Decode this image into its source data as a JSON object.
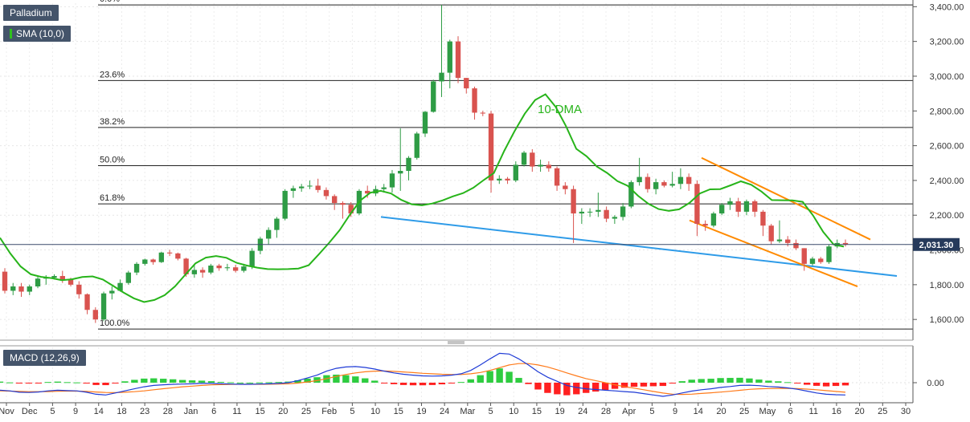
{
  "chart_data": [
    {
      "type": "candlestick",
      "title": "Palladium",
      "ylim": [
        1490,
        3420
      ],
      "y_ticks": [
        1600,
        1800,
        2000,
        2200,
        2400,
        2600,
        2800,
        3000,
        3200,
        3400
      ],
      "y_tick_labels": [
        "1,600.00",
        "1,800.00",
        "2,000.00",
        "2,200.00",
        "2,400.00",
        "2,600.00",
        "2,800.00",
        "3,000.00",
        "3,200.00",
        "3,400.00"
      ],
      "last_price": 2031.3,
      "last_price_label": "2,031.30",
      "fibonacci": [
        {
          "label": "0.0%",
          "value": 3410
        },
        {
          "label": "23.6%",
          "value": 2975
        },
        {
          "label": "38.2%",
          "value": 2705
        },
        {
          "label": "50.0%",
          "value": 2485
        },
        {
          "label": "61.8%",
          "value": 2265
        },
        {
          "label": "100.0%",
          "value": 1545
        }
      ],
      "indicator_legend": "SMA (10,0)",
      "annotation": "10-DMA",
      "x_tick_labels": [
        "Nov",
        "Dec",
        "5",
        "9",
        "14",
        "18",
        "23",
        "28",
        "Jan",
        "6",
        "11",
        "15",
        "20",
        "25",
        "Feb",
        "5",
        "10",
        "15",
        "19",
        "24",
        "Mar",
        "5",
        "10",
        "15",
        "19",
        "24",
        "28",
        "Apr",
        "5",
        "9",
        "14",
        "20",
        "25",
        "May",
        "6",
        "11",
        "16",
        "20",
        "25",
        "30"
      ],
      "sma_10": [
        2070,
        1980,
        1905,
        1860,
        1845,
        1838,
        1826,
        1831,
        1844,
        1848,
        1830,
        1793,
        1755,
        1722,
        1700,
        1712,
        1740,
        1790,
        1857,
        1923,
        1956,
        1965,
        1955,
        1926,
        1910,
        1898,
        1890,
        1889,
        1890,
        1893,
        1912,
        1976,
        2042,
        2114,
        2203,
        2284,
        2330,
        2340,
        2325,
        2288,
        2263,
        2257,
        2267,
        2285,
        2308,
        2327,
        2358,
        2402,
        2443,
        2570,
        2683,
        2784,
        2863,
        2896,
        2823,
        2712,
        2582,
        2539,
        2480,
        2443,
        2396,
        2369,
        2312,
        2266,
        2235,
        2225,
        2234,
        2271,
        2325,
        2349,
        2350,
        2372,
        2395,
        2375,
        2336,
        2287,
        2286,
        2285,
        2277,
        2199,
        2103,
        2032,
        2019
      ],
      "candles": [
        [
          1875,
          1895,
          1750,
          1765
        ],
        [
          1765,
          1810,
          1740,
          1790
        ],
        [
          1790,
          1810,
          1730,
          1760
        ],
        [
          1760,
          1800,
          1740,
          1790
        ],
        [
          1790,
          1845,
          1780,
          1835
        ],
        [
          1835,
          1855,
          1800,
          1840
        ],
        [
          1840,
          1860,
          1830,
          1850
        ],
        [
          1850,
          1880,
          1810,
          1830
        ],
        [
          1830,
          1840,
          1790,
          1800
        ],
        [
          1800,
          1820,
          1720,
          1745
        ],
        [
          1745,
          1750,
          1630,
          1655
        ],
        [
          1655,
          1670,
          1580,
          1600
        ],
        [
          1600,
          1760,
          1590,
          1750
        ],
        [
          1750,
          1790,
          1715,
          1765
        ],
        [
          1765,
          1830,
          1760,
          1810
        ],
        [
          1810,
          1880,
          1800,
          1870
        ],
        [
          1870,
          1930,
          1855,
          1920
        ],
        [
          1920,
          1950,
          1910,
          1945
        ],
        [
          1945,
          1950,
          1915,
          1930
        ],
        [
          1930,
          1990,
          1925,
          1985
        ],
        [
          1985,
          2000,
          1965,
          1980
        ],
        [
          1980,
          1985,
          1940,
          1950
        ],
        [
          1950,
          1955,
          1845,
          1860
        ],
        [
          1860,
          1920,
          1840,
          1885
        ],
        [
          1885,
          1900,
          1840,
          1870
        ],
        [
          1870,
          1920,
          1860,
          1910
        ],
        [
          1910,
          1920,
          1880,
          1895
        ],
        [
          1895,
          1920,
          1880,
          1900
        ],
        [
          1900,
          1915,
          1870,
          1880
        ],
        [
          1880,
          1920,
          1870,
          1905
        ],
        [
          1905,
          2010,
          1890,
          1995
        ],
        [
          1995,
          2075,
          1975,
          2065
        ],
        [
          2065,
          2130,
          2030,
          2115
        ],
        [
          2115,
          2190,
          2070,
          2180
        ],
        [
          2180,
          2350,
          2170,
          2340
        ],
        [
          2340,
          2370,
          2300,
          2355
        ],
        [
          2355,
          2380,
          2335,
          2365
        ],
        [
          2365,
          2400,
          2350,
          2370
        ],
        [
          2370,
          2410,
          2330,
          2345
        ],
        [
          2345,
          2360,
          2290,
          2310
        ],
        [
          2310,
          2320,
          2230,
          2270
        ],
        [
          2270,
          2280,
          2180,
          2260
        ],
        [
          2260,
          2275,
          2190,
          2210
        ],
        [
          2210,
          2350,
          2200,
          2340
        ],
        [
          2340,
          2370,
          2300,
          2325
        ],
        [
          2325,
          2370,
          2310,
          2350
        ],
        [
          2350,
          2380,
          2330,
          2360
        ],
        [
          2360,
          2460,
          2330,
          2440
        ],
        [
          2440,
          2700,
          2340,
          2455
        ],
        [
          2455,
          2540,
          2400,
          2530
        ],
        [
          2530,
          2680,
          2520,
          2670
        ],
        [
          2670,
          2800,
          2650,
          2795
        ],
        [
          2795,
          2980,
          2790,
          2970
        ],
        [
          2970,
          3410,
          2880,
          3020
        ],
        [
          3020,
          3210,
          2930,
          3200
        ],
        [
          3200,
          3230,
          2960,
          2990
        ],
        [
          2990,
          2990,
          2900,
          2930
        ],
        [
          2930,
          2940,
          2750,
          2790
        ],
        [
          2790,
          2800,
          2770,
          2785
        ],
        [
          2785,
          2800,
          2330,
          2400
        ],
        [
          2400,
          2430,
          2380,
          2410
        ],
        [
          2410,
          2420,
          2380,
          2400
        ],
        [
          2400,
          2510,
          2390,
          2490
        ],
        [
          2490,
          2570,
          2480,
          2560
        ],
        [
          2560,
          2580,
          2450,
          2480
        ],
        [
          2480,
          2520,
          2450,
          2490
        ],
        [
          2490,
          2510,
          2450,
          2470
        ],
        [
          2470,
          2480,
          2340,
          2370
        ],
        [
          2370,
          2390,
          2320,
          2350
        ],
        [
          2350,
          2370,
          2040,
          2210
        ],
        [
          2210,
          2240,
          2150,
          2220
        ],
        [
          2220,
          2240,
          2190,
          2220
        ],
        [
          2220,
          2330,
          2190,
          2230
        ],
        [
          2230,
          2250,
          2160,
          2180
        ],
        [
          2180,
          2200,
          2150,
          2190
        ],
        [
          2190,
          2270,
          2170,
          2250
        ],
        [
          2250,
          2400,
          2240,
          2390
        ],
        [
          2390,
          2530,
          2370,
          2420
        ],
        [
          2420,
          2440,
          2330,
          2350
        ],
        [
          2350,
          2410,
          2320,
          2390
        ],
        [
          2390,
          2400,
          2360,
          2370
        ],
        [
          2370,
          2450,
          2360,
          2380
        ],
        [
          2380,
          2470,
          2350,
          2420
        ],
        [
          2420,
          2440,
          2340,
          2380
        ],
        [
          2380,
          2400,
          2080,
          2150
        ],
        [
          2150,
          2170,
          2110,
          2140
        ],
        [
          2140,
          2220,
          2130,
          2210
        ],
        [
          2210,
          2270,
          2200,
          2260
        ],
        [
          2260,
          2300,
          2230,
          2280
        ],
        [
          2280,
          2300,
          2190,
          2220
        ],
        [
          2220,
          2290,
          2200,
          2280
        ],
        [
          2280,
          2290,
          2190,
          2220
        ],
        [
          2220,
          2230,
          2080,
          2140
        ],
        [
          2140,
          2150,
          2030,
          2050
        ],
        [
          2050,
          2170,
          2040,
          2060
        ],
        [
          2060,
          2080,
          2020,
          2040
        ],
        [
          2040,
          2060,
          2000,
          2010
        ],
        [
          2010,
          2010,
          1880,
          1920
        ],
        [
          1920,
          1960,
          1910,
          1950
        ],
        [
          1950,
          1960,
          1920,
          1930
        ],
        [
          1930,
          2030,
          1920,
          2020
        ],
        [
          2020,
          2060,
          2010,
          2040
        ],
        [
          2040,
          2060,
          2020,
          2031.3
        ]
      ],
      "trendlines": [
        {
          "name": "support",
          "color": "#2e9be8",
          "points": [
            [
              2190,
              0
            ],
            [
              1850,
              1
            ]
          ]
        },
        {
          "name": "channel-upper",
          "color": "#ff8a00",
          "points": [
            [
              2530,
              0
            ],
            [
              2060,
              1
            ]
          ]
        },
        {
          "name": "channel-lower",
          "color": "#ff8a00",
          "points": [
            [
              2170,
              0
            ],
            [
              1790,
              1
            ]
          ]
        }
      ]
    },
    {
      "type": "macd",
      "title": "MACD (12,26,9)",
      "y_tick_labels": [
        "0.00"
      ],
      "macd": [
        -55,
        -60,
        -70,
        -72,
        -68,
        -60,
        -55,
        -58,
        -60,
        -70,
        -85,
        -90,
        -75,
        -60,
        -45,
        -30,
        -20,
        -15,
        -12,
        -10,
        -8,
        -5,
        -5,
        -8,
        -10,
        -12,
        -12,
        -10,
        -8,
        -5,
        0,
        15,
        35,
        55,
        85,
        105,
        115,
        118,
        112,
        100,
        85,
        72,
        62,
        55,
        50,
        48,
        50,
        55,
        65,
        90,
        130,
        175,
        215,
        210,
        175,
        130,
        80,
        40,
        10,
        -20,
        -35,
        -45,
        -50,
        -55,
        -60,
        -65,
        -70,
        -80,
        -90,
        -100,
        -90,
        -75,
        -62,
        -52,
        -45,
        -35,
        -28,
        -20,
        -18,
        -22,
        -28,
        -32,
        -38,
        -48,
        -62,
        -75,
        -85,
        -88,
        -90
      ],
      "signal": [
        -60,
        -62,
        -64,
        -66,
        -66,
        -65,
        -63,
        -62,
        -62,
        -64,
        -68,
        -72,
        -73,
        -70,
        -66,
        -60,
        -52,
        -44,
        -37,
        -30,
        -25,
        -20,
        -16,
        -14,
        -13,
        -12,
        -12,
        -12,
        -11,
        -10,
        -8,
        -3,
        5,
        15,
        30,
        46,
        60,
        72,
        80,
        85,
        86,
        83,
        79,
        74,
        69,
        65,
        62,
        60,
        60,
        65,
        75,
        90,
        110,
        130,
        140,
        140,
        130,
        115,
        95,
        72,
        50,
        30,
        15,
        0,
        -15,
        -28,
        -40,
        -52,
        -64,
        -76,
        -84,
        -86,
        -84,
        -79,
        -74,
        -69,
        -63,
        -56,
        -49,
        -45,
        -43,
        -42,
        -42,
        -43,
        -47,
        -52,
        -58,
        -64,
        -70
      ],
      "histogram": [
        8,
        2,
        -6,
        -6,
        -2,
        5,
        8,
        4,
        2,
        -6,
        -17,
        -18,
        -2,
        10,
        21,
        30,
        32,
        29,
        25,
        20,
        17,
        15,
        11,
        6,
        3,
        0,
        0,
        2,
        3,
        5,
        8,
        18,
        30,
        40,
        55,
        59,
        55,
        46,
        32,
        15,
        -1,
        -11,
        -17,
        -19,
        -19,
        -17,
        -12,
        -5,
        5,
        25,
        55,
        85,
        105,
        80,
        35,
        -10,
        -50,
        -75,
        -85,
        -92,
        -85,
        -75,
        -65,
        -55,
        -45,
        -37,
        -30,
        -28,
        -26,
        -24,
        -6,
        11,
        22,
        27,
        29,
        34,
        35,
        36,
        31,
        23,
        15,
        10,
        4,
        -5,
        -15,
        -23,
        -27,
        -24,
        -20
      ]
    }
  ]
}
